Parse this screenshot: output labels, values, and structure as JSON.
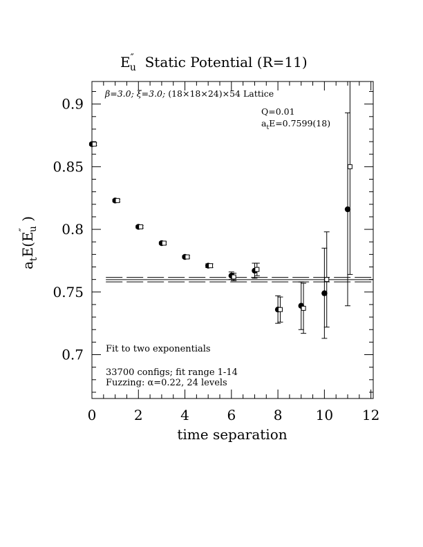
{
  "chart_data": {
    "type": "scatter",
    "title": {
      "main": "E",
      "sup": "″",
      "sub": "u",
      "rest": "  Static Potential (R=11)"
    },
    "xlabel": "time separation",
    "ylabel": {
      "main": "a",
      "sub_t": "t",
      "mid": "E(E",
      "sup": "″",
      "sub": "u",
      "end": " )"
    },
    "xlim": [
      0,
      12.1
    ],
    "ylim": [
      0.665,
      0.918
    ],
    "xticks": [
      0,
      2,
      4,
      6,
      8,
      10,
      12
    ],
    "xtick_labels": [
      "0",
      "2",
      "4",
      "6",
      "8",
      "10",
      "12"
    ],
    "yticks": [
      0.7,
      0.75,
      0.8,
      0.85,
      0.9
    ],
    "ytick_labels": [
      "0.7",
      "0.75",
      "0.8",
      "0.85",
      "0.9"
    ],
    "annotations": {
      "lattice": {
        "beta": "β=3.0; ",
        "xi": "ξ=3.0; ",
        "rest": "(18×18×24)×54 Lattice"
      },
      "q": "Q=0.01",
      "fit_energy": {
        "a": "a",
        "sub": "t",
        "rest": "E=0.7599(18)"
      },
      "fit_type": "Fit to two exponentials",
      "configs": "33700 configs; fit range 1-14",
      "fuzzing": "Fuzzing: α=0.22, 24 levels"
    },
    "fit": {
      "value": 0.7599,
      "error": 0.0018,
      "x_range": [
        0.6,
        12.1
      ]
    },
    "series": [
      {
        "marker": "filled-circle",
        "x": [
          0,
          1,
          2,
          3,
          4,
          5,
          6,
          7,
          8,
          9,
          10,
          11
        ],
        "y": [
          0.868,
          0.823,
          0.802,
          0.789,
          0.778,
          0.771,
          0.763,
          0.767,
          0.736,
          0.739,
          0.749,
          0.816
        ],
        "err": [
          0.001,
          0.001,
          0.001,
          0.001,
          0.001,
          0.0015,
          0.003,
          0.006,
          0.011,
          0.019,
          0.036,
          0.077
        ]
      },
      {
        "marker": "open-square",
        "x": [
          0.1,
          1.1,
          2.1,
          3.1,
          4.1,
          5.1,
          6.1,
          7.1,
          8.1,
          9.1,
          10.1,
          11.1
        ],
        "y": [
          0.868,
          0.823,
          0.802,
          0.789,
          0.778,
          0.771,
          0.762,
          0.768,
          0.736,
          0.737,
          0.76,
          0.85
        ],
        "err": [
          0.001,
          0.001,
          0.001,
          0.001,
          0.001,
          0.0015,
          0.003,
          0.005,
          0.01,
          0.02,
          0.038,
          0.086
        ]
      }
    ]
  }
}
